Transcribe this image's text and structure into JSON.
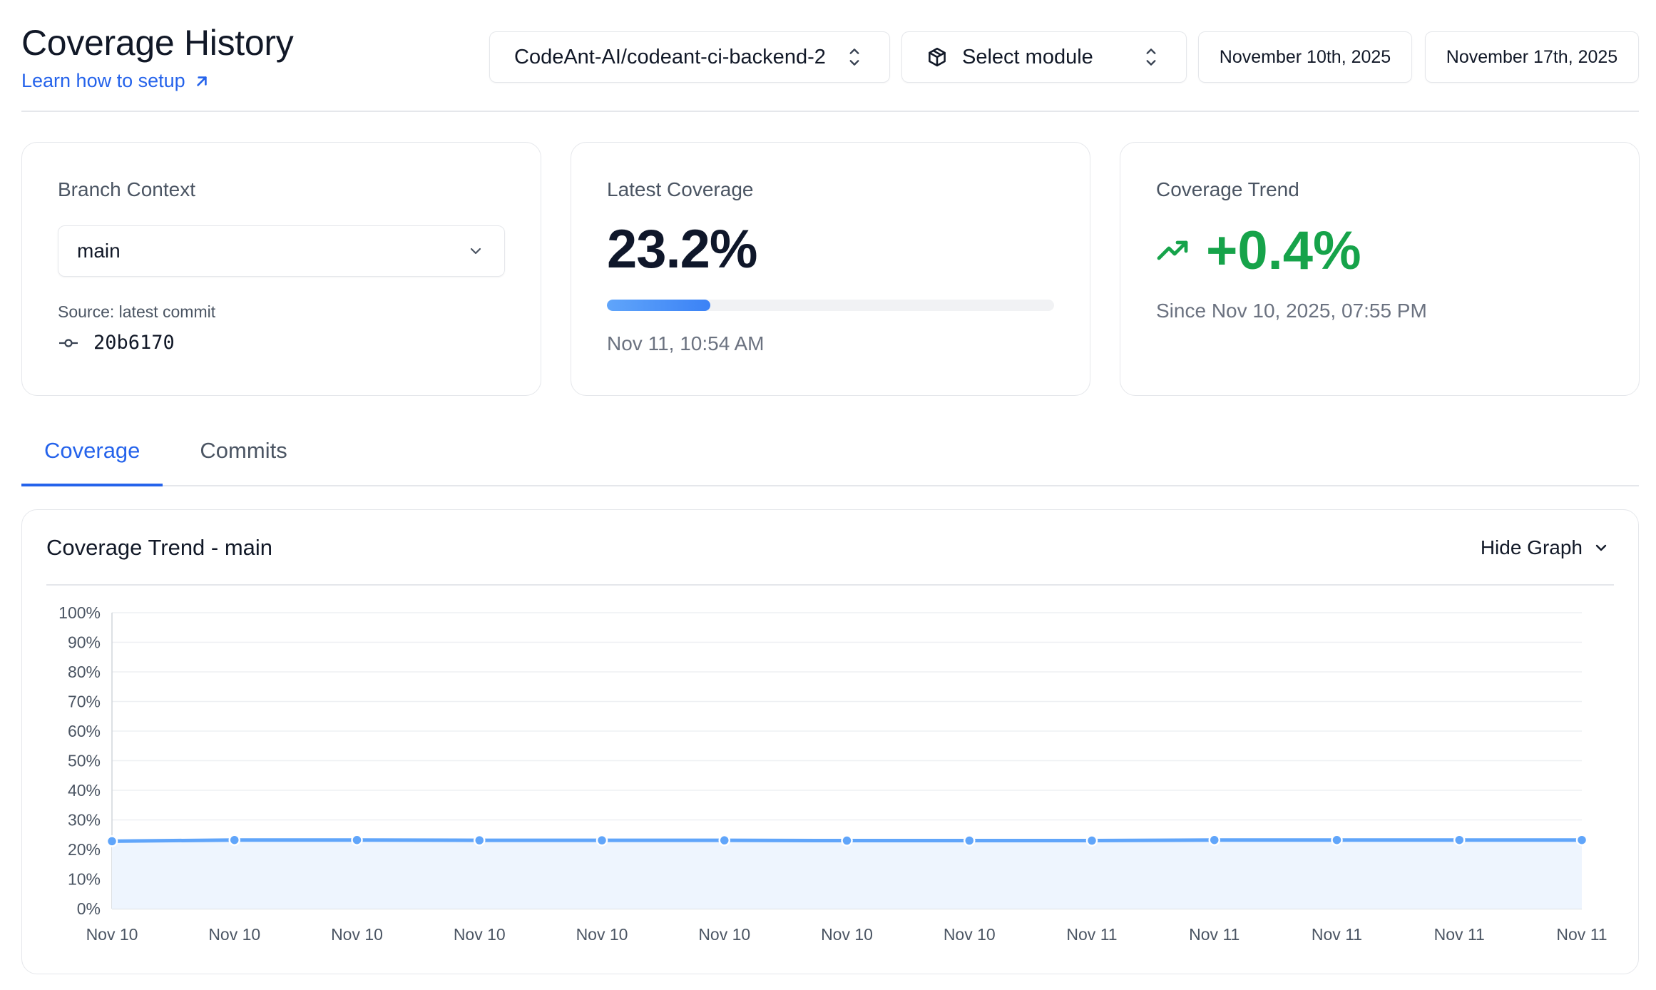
{
  "header": {
    "title": "Coverage History",
    "setup_link": "Learn how to setup"
  },
  "controls": {
    "repo": "CodeAnt-AI/codeant-ci-backend-2",
    "module": "Select module",
    "date_from": "November 10th, 2025",
    "date_to": "November 17th, 2025"
  },
  "cards": {
    "branch": {
      "label": "Branch Context",
      "selected": "main",
      "source_label": "Source: latest commit",
      "commit": "20b6170"
    },
    "latest": {
      "label": "Latest Coverage",
      "value": "23.2%",
      "progress": 0.232,
      "timestamp": "Nov 11, 10:54 AM"
    },
    "trend": {
      "label": "Coverage Trend",
      "value": "+0.4%",
      "since": "Since Nov 10, 2025, 07:55 PM"
    }
  },
  "tabs": [
    {
      "label": "Coverage",
      "active": true
    },
    {
      "label": "Commits",
      "active": false
    }
  ],
  "chart_panel": {
    "title": "Coverage Trend - main",
    "toggle_label": "Hide Graph"
  },
  "colors": {
    "accent": "#2563eb",
    "line": "#60a5fa",
    "area": "#eef5fe",
    "positive": "#16a34a"
  },
  "chart_data": {
    "type": "area",
    "title": "",
    "xlabel": "",
    "ylabel": "",
    "ylim": [
      0,
      100
    ],
    "y_ticks": [
      "0%",
      "10%",
      "20%",
      "30%",
      "40%",
      "50%",
      "60%",
      "70%",
      "80%",
      "90%",
      "100%"
    ],
    "categories": [
      "Nov 10",
      "Nov 10",
      "Nov 10",
      "Nov 10",
      "Nov 10",
      "Nov 10",
      "Nov 10",
      "Nov 10",
      "Nov 11",
      "Nov 11",
      "Nov 11",
      "Nov 11",
      "Nov 11"
    ],
    "series": [
      {
        "values": [
          22.8,
          23.2,
          23.2,
          23.1,
          23.1,
          23.1,
          23.0,
          23.0,
          23.0,
          23.2,
          23.2,
          23.2,
          23.2
        ]
      }
    ],
    "grid": true,
    "legend": "none"
  }
}
